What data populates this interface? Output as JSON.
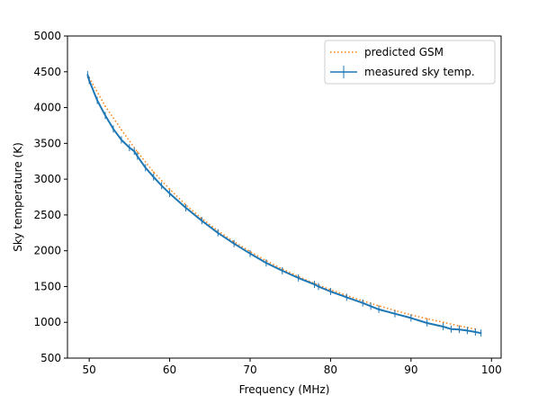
{
  "chart_data": {
    "type": "line",
    "xlabel": "Frequency (MHz)",
    "ylabel": "Sky temperature (K)",
    "xlim": [
      47.3,
      101.2
    ],
    "ylim": [
      500,
      5000
    ],
    "xticks": [
      50,
      60,
      70,
      80,
      90,
      100
    ],
    "yticks": [
      500,
      1000,
      1500,
      2000,
      2500,
      3000,
      3500,
      4000,
      4500,
      5000
    ],
    "legend_position": "top-right",
    "grid": false,
    "series": [
      {
        "name": "predicted GSM",
        "style": "dotted",
        "color": "#ff7f0e",
        "x": [
          50,
          52,
          54,
          56,
          58,
          60,
          62,
          64,
          66,
          68,
          70,
          72,
          74,
          76,
          78,
          80,
          82,
          84,
          86,
          88,
          90,
          92,
          94,
          96,
          98
        ],
        "y": [
          4420,
          4020,
          3690,
          3380,
          3100,
          2860,
          2640,
          2450,
          2280,
          2125,
          1990,
          1860,
          1745,
          1640,
          1545,
          1455,
          1375,
          1300,
          1230,
          1165,
          1105,
          1050,
          1000,
          950,
          905
        ]
      },
      {
        "name": "measured sky temp.",
        "style": "solid",
        "color": "#1f77b4",
        "errorbars": true,
        "x": [
          49.8,
          50,
          51,
          52,
          53,
          54,
          55,
          55.6,
          56,
          57,
          58,
          59,
          60,
          62,
          64,
          66,
          68,
          70,
          72,
          74,
          76,
          78,
          78.5,
          80,
          82,
          84,
          85,
          86,
          88,
          90,
          92,
          94,
          95,
          96,
          97,
          98,
          98.7
        ],
        "y": [
          4460,
          4380,
          4100,
          3890,
          3700,
          3550,
          3440,
          3390,
          3320,
          3160,
          3030,
          2910,
          2800,
          2600,
          2420,
          2250,
          2100,
          1960,
          1830,
          1720,
          1620,
          1530,
          1500,
          1430,
          1350,
          1270,
          1225,
          1180,
          1120,
          1060,
          990,
          940,
          905,
          900,
          885,
          865,
          850
        ]
      }
    ]
  }
}
